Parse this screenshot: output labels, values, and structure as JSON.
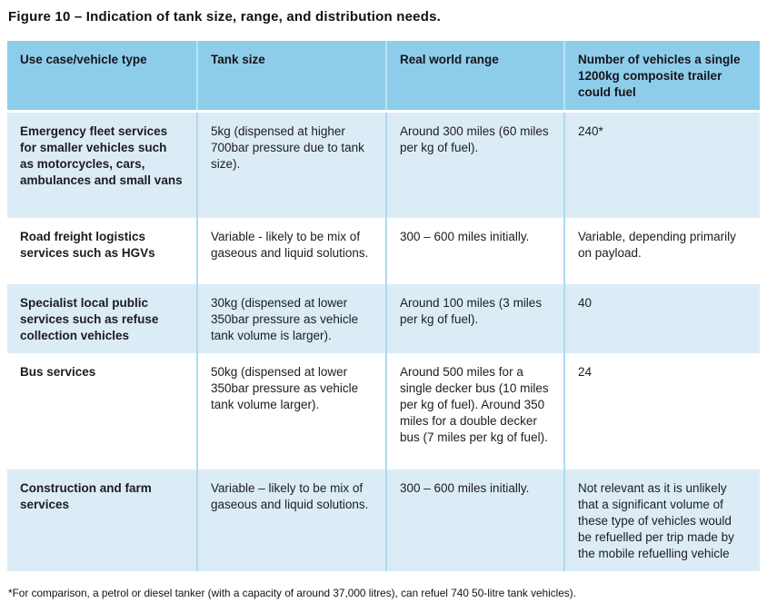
{
  "figure": {
    "title": "Figure 10 – Indication of tank size, range, and distribution needs.",
    "footnote": "*For comparison, a petrol or diesel tanker (with a capacity of around 37,000 litres), can refuel 740 50-litre tank vehicles)."
  },
  "table": {
    "headers": [
      "Use case/vehicle type",
      "Tank size",
      "Real world range",
      "Number of vehicles a single 1200kg composite trailer could fuel"
    ],
    "rows": [
      {
        "use_case": "Emergency fleet services for smaller vehicles such as motorcycles, cars, ambulances and small vans",
        "tank_size": "5kg (dispensed at higher 700bar pressure due to tank size).",
        "real_world_range": "Around 300 miles (60 miles per kg of fuel).",
        "vehicles_fuelled": "240*"
      },
      {
        "use_case": "Road freight logistics services such as HGVs",
        "tank_size": "Variable - likely to be mix of gaseous and liquid solutions.",
        "real_world_range": "300 – 600 miles initially.",
        "vehicles_fuelled": "Variable, depending primarily on payload."
      },
      {
        "use_case": "Specialist local public services such as refuse collection vehicles",
        "tank_size": "30kg (dispensed at lower 350bar pressure as vehicle tank volume is larger).",
        "real_world_range": "Around 100 miles (3 miles per kg of fuel).",
        "vehicles_fuelled": "40"
      },
      {
        "use_case": "Bus services",
        "tank_size": "50kg (dispensed at lower 350bar pressure as vehicle tank volume larger).",
        "real_world_range": "Around 500 miles for a single decker bus (10 miles per kg of fuel). Around 350 miles for a double decker bus (7 miles per kg of fuel).",
        "vehicles_fuelled": "24"
      },
      {
        "use_case": "Construction and farm services",
        "tank_size": "Variable – likely to be mix of gaseous and liquid solutions.",
        "real_world_range": "300 – 600 miles initially.",
        "vehicles_fuelled": "Not relevant as it is unlikely that a significant volume of these type of vehicles would be refuelled per trip made by the mobile refuelling vehicle"
      }
    ]
  },
  "colors": {
    "header_bg": "#8ecdea",
    "row_alt_bg": "#dcecf7",
    "row_bg": "#ffffff",
    "divider": "#aedaf0",
    "text": "#1c1c22"
  }
}
